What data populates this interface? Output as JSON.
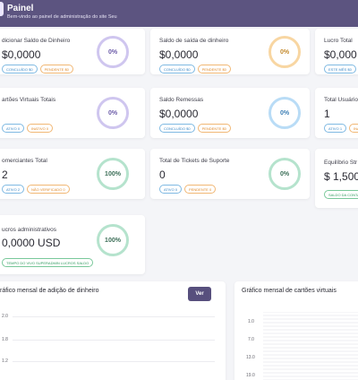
{
  "header": {
    "title": "Painel",
    "subtitle": "Bem-vindo ao painel de administração do site Seu"
  },
  "cards": [
    {
      "label": "dicionar Saldo de Dinheiro",
      "value": "$0,0000",
      "badges": [
        {
          "text": "CONCLUÍDO $0",
          "color": "blue"
        },
        {
          "text": "PENDENTE $0",
          "color": "orange"
        }
      ],
      "ring": "0%"
    },
    {
      "label": "Saldo de saída de dinheiro",
      "value": "$0,0000",
      "badges": [
        {
          "text": "CONCLUÍDO $0",
          "color": "blue"
        },
        {
          "text": "PENDENTE $0",
          "color": "orange"
        }
      ],
      "ring": "0%"
    },
    {
      "label": "Lucro Total",
      "value": "$0,000",
      "badges": [
        {
          "text": "ESTE MÊS $0",
          "color": "blue"
        }
      ]
    },
    {
      "label": "artões Virtuais Totais",
      "value": "",
      "badges": [
        {
          "text": "ATIVO 0",
          "color": "blue"
        },
        {
          "text": "INATIVO 0",
          "color": "orange"
        }
      ],
      "ring": "0%"
    },
    {
      "label": "Saldo Remessas",
      "value": "$0,0000",
      "badges": [
        {
          "text": "CONCLUÍDO $0",
          "color": "blue"
        },
        {
          "text": "PENDENTE $0",
          "color": "orange"
        }
      ],
      "ring": "0%"
    },
    {
      "label": "Total Usuário",
      "value": "1",
      "badges": [
        {
          "text": "ATIVO 1",
          "color": "blue"
        },
        {
          "text": "INAT",
          "color": "orange"
        }
      ]
    },
    {
      "label": "omerciantes Total",
      "value": "2",
      "badges": [
        {
          "text": "ATIVO 2",
          "color": "blue"
        },
        {
          "text": "NÃO VERIFICADO 0",
          "color": "orange"
        }
      ],
      "ring": "100%"
    },
    {
      "label": "Total de Tickets de Suporte",
      "value": "0",
      "badges": [
        {
          "text": "ATIVO 0",
          "color": "blue"
        },
        {
          "text": "PENDENTE 0",
          "color": "orange"
        }
      ],
      "ring": "0%"
    },
    {
      "label": "Equilíbrio Str",
      "value": "$ 1,5000",
      "badges": [
        {
          "text": "SALDO DA CONTA",
          "color": "green"
        }
      ]
    },
    {
      "label": "ucros administrativos",
      "value": "0,0000 USD",
      "badges": [
        {
          "text": "TEMPO DO VIVO SUPERADMIN LUCROS SALDO",
          "color": "green"
        }
      ],
      "ring": "100%"
    }
  ],
  "charts": {
    "money": {
      "title": "ráfico mensal de adição de dinheiro",
      "button": "Ver",
      "ticks": [
        "2.0",
        "1.8",
        "1.2"
      ]
    },
    "cards": {
      "title": "Gráfico mensal de cartões virtuais",
      "ticks": [
        "1.0",
        "7.0",
        "13.0",
        "19.0"
      ]
    }
  }
}
